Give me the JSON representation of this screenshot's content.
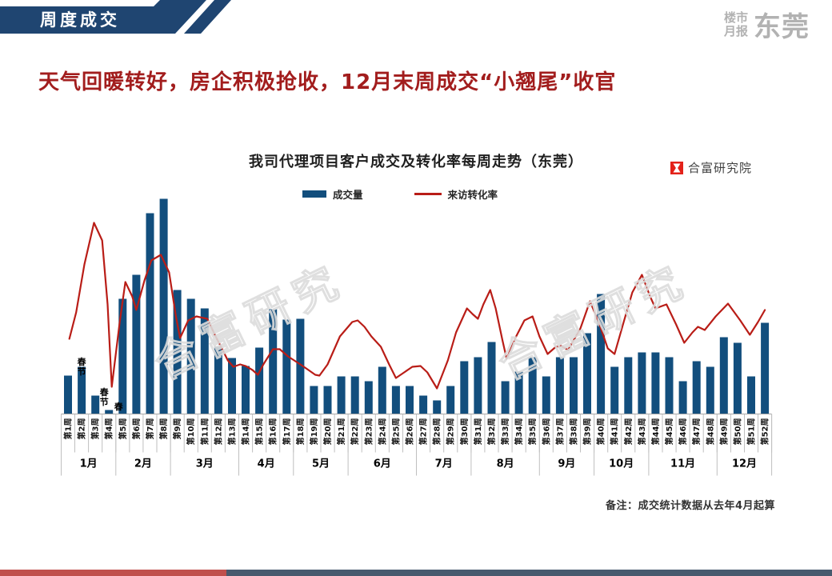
{
  "header": {
    "tab_label": "周度成交"
  },
  "brand": {
    "line1": "楼市",
    "line2": "月报",
    "name": "东莞"
  },
  "page_title": "天气回暖转好，房企积极抢收，12月末周成交“小翘尾”收官",
  "chart": {
    "title": "我司代理项目客户成交及转化率每周走势（东莞）",
    "legend": [
      {
        "label": "成交量",
        "type": "bar",
        "color": "#124e7d"
      },
      {
        "label": "来访转化率",
        "type": "line",
        "color": "#b91d17"
      }
    ],
    "source_logo": "合富研究院",
    "watermark": "合富研究",
    "note": "备注：成交统计数据从去年4月起算"
  },
  "chart_data": {
    "type": "bar+line combo",
    "title": "我司代理项目客户成交及转化率每周走势（东莞）",
    "value_axis": "none shown — values are relative pixel heights above baseline",
    "categories": [
      "第1周",
      "第2周",
      "第3周",
      "第4周",
      "第5周",
      "第6周",
      "第7周",
      "第8周",
      "第9周",
      "第10周",
      "第11周",
      "第12周",
      "第13周",
      "第14周",
      "第15周",
      "第16周",
      "第17周",
      "第18周",
      "第19周",
      "第20周",
      "第21周",
      "第22周",
      "第23周",
      "第24周",
      "第25周",
      "第26周",
      "第27周",
      "第28周",
      "第29周",
      "第30周",
      "第31周",
      "第32周",
      "第33周",
      "第34周",
      "第35周",
      "第36周",
      "第37周",
      "第38周",
      "第39周",
      "第40周",
      "第41周",
      "第42周",
      "第43周",
      "第44周",
      "第45周",
      "第46周",
      "第47周",
      "第48周",
      "第49周",
      "第50周",
      "第51周",
      "第52周"
    ],
    "months": [
      {
        "label": "1月",
        "from": 1,
        "to": 4
      },
      {
        "label": "2月",
        "from": 5,
        "to": 8
      },
      {
        "label": "3月",
        "from": 9,
        "to": 13
      },
      {
        "label": "4月",
        "from": 14,
        "to": 17
      },
      {
        "label": "5月",
        "from": 18,
        "to": 21
      },
      {
        "label": "6月",
        "from": 22,
        "to": 26
      },
      {
        "label": "7月",
        "from": 27,
        "to": 30
      },
      {
        "label": "8月",
        "from": 31,
        "to": 35
      },
      {
        "label": "9月",
        "from": 36,
        "to": 39
      },
      {
        "label": "10月",
        "from": 40,
        "to": 43
      },
      {
        "label": "11月",
        "from": 44,
        "to": 48
      },
      {
        "label": "12月",
        "from": 49,
        "to": 52
      }
    ],
    "series": [
      {
        "name": "成交量",
        "type": "bar",
        "color": "#124e7d",
        "values": [
          48,
          59,
          23,
          5,
          144,
          174,
          251,
          269,
          155,
          144,
          132,
          84,
          70,
          60,
          83,
          131,
          118,
          119,
          35,
          35,
          47,
          47,
          41,
          59,
          35,
          35,
          23,
          17,
          35,
          66,
          71,
          90,
          41,
          53,
          71,
          47,
          71,
          71,
          101,
          150,
          59,
          71,
          77,
          77,
          71,
          41,
          66,
          59,
          96,
          89,
          47,
          114
        ]
      },
      {
        "name": "来访转化率",
        "type": "line",
        "color": "#b91d17",
        "points_week_height": [
          [
            1.1,
            94
          ],
          [
            1.6,
            127
          ],
          [
            2.2,
            187
          ],
          [
            2.9,
            239
          ],
          [
            3.5,
            217
          ],
          [
            3.9,
            137
          ],
          [
            4.2,
            34
          ],
          [
            4.8,
            117
          ],
          [
            5.2,
            165
          ],
          [
            5.7,
            147
          ],
          [
            6.0,
            130
          ],
          [
            6.6,
            167
          ],
          [
            7.1,
            192
          ],
          [
            7.8,
            199
          ],
          [
            8.4,
            177
          ],
          [
            8.9,
            122
          ],
          [
            9.2,
            95
          ],
          [
            9.8,
            117
          ],
          [
            10.4,
            122
          ],
          [
            11.2,
            119
          ],
          [
            11.8,
            97
          ],
          [
            12.2,
            84
          ],
          [
            12.7,
            67
          ],
          [
            13.1,
            59
          ],
          [
            13.6,
            62
          ],
          [
            14.0,
            60
          ],
          [
            14.5,
            55
          ],
          [
            14.9,
            49
          ],
          [
            15.3,
            62
          ],
          [
            16.0,
            81
          ],
          [
            16.5,
            81
          ],
          [
            17.1,
            72
          ],
          [
            18.0,
            62
          ],
          [
            18.6,
            55
          ],
          [
            19.1,
            49
          ],
          [
            19.4,
            48
          ],
          [
            20.0,
            62
          ],
          [
            20.9,
            97
          ],
          [
            21.8,
            115
          ],
          [
            22.2,
            117
          ],
          [
            22.7,
            109
          ],
          [
            23.2,
            97
          ],
          [
            23.9,
            84
          ],
          [
            24.5,
            62
          ],
          [
            25.0,
            45
          ],
          [
            25.6,
            52
          ],
          [
            26.2,
            59
          ],
          [
            26.8,
            60
          ],
          [
            27.3,
            52
          ],
          [
            28.0,
            32
          ],
          [
            28.8,
            67
          ],
          [
            29.4,
            102
          ],
          [
            30.2,
            132
          ],
          [
            30.6,
            125
          ],
          [
            31.0,
            119
          ],
          [
            31.4,
            137
          ],
          [
            31.9,
            155
          ],
          [
            32.3,
            132
          ],
          [
            32.8,
            92
          ],
          [
            33.1,
            69
          ],
          [
            33.8,
            97
          ],
          [
            34.4,
            117
          ],
          [
            35.0,
            122
          ],
          [
            35.5,
            97
          ],
          [
            36.1,
            75
          ],
          [
            36.7,
            84
          ],
          [
            37.1,
            85
          ],
          [
            37.6,
            80
          ],
          [
            38.5,
            107
          ],
          [
            39.2,
            141
          ],
          [
            39.9,
            112
          ],
          [
            40.5,
            82
          ],
          [
            41.0,
            75
          ],
          [
            41.7,
            117
          ],
          [
            42.3,
            152
          ],
          [
            43.0,
            174
          ],
          [
            43.6,
            147
          ],
          [
            44.0,
            132
          ],
          [
            44.8,
            137
          ],
          [
            45.5,
            112
          ],
          [
            46.1,
            89
          ],
          [
            46.7,
            102
          ],
          [
            47.1,
            109
          ],
          [
            47.6,
            105
          ],
          [
            48.4,
            122
          ],
          [
            49.3,
            138
          ],
          [
            50.2,
            117
          ],
          [
            50.9,
            99
          ],
          [
            51.5,
            115
          ],
          [
            52.0,
            130
          ]
        ]
      }
    ],
    "annotations": [
      {
        "text": "春节",
        "week": 2,
        "dx": 0,
        "y": 226
      },
      {
        "text": "春节",
        "week": 4,
        "dx": -6,
        "y": 264
      },
      {
        "text": "春",
        "week": 5,
        "dx": -5,
        "y": 282
      }
    ],
    "legend_position": "top-center",
    "grid": false
  },
  "colors": {
    "header_navy": "#1f4571",
    "bar_blue": "#124e7d",
    "line_red": "#b91d17",
    "title_red": "#a21d1d",
    "brand_gray": "#b2b2b2",
    "hf_logo_red": "#e32119",
    "footer_red": "#c0504d",
    "footer_slate": "#475a6e",
    "axis_gray": "#a6a6a6",
    "separator_gray": "#bfbfbf",
    "watermark_gray": "#dcdcdc"
  }
}
